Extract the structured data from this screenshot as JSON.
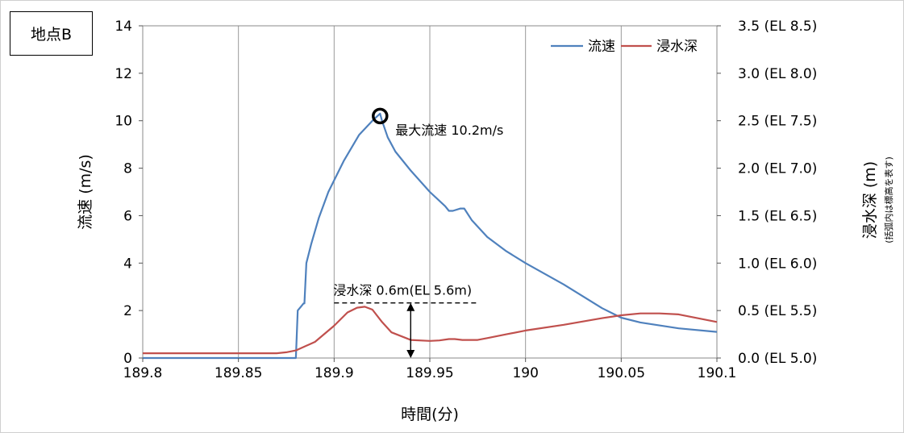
{
  "location_label": "地点B",
  "chart_data": {
    "type": "line",
    "xlabel": "時間(分)",
    "ylabel_left": "流速 (m/s)",
    "ylabel_right": "浸水深 (m)",
    "ylabel_right_note": "(括弧内は標高を表す)",
    "xlim": [
      189.8,
      190.1
    ],
    "x_ticks": [
      "189.8",
      "189.85",
      "189.9",
      "189.95",
      "190",
      "190.05",
      "190.1"
    ],
    "x_tick_values": [
      189.8,
      189.85,
      189.9,
      189.95,
      190.0,
      190.05,
      190.1
    ],
    "ylim_left": [
      0,
      14
    ],
    "y_ticks_left": [
      "0",
      "2",
      "4",
      "6",
      "8",
      "10",
      "12",
      "14"
    ],
    "y_tick_values_left": [
      0,
      2,
      4,
      6,
      8,
      10,
      12,
      14
    ],
    "ylim_right": [
      0,
      3.5
    ],
    "y_ticks_right": [
      "0.0 (EL 5.0)",
      "0.5 (EL 5.5)",
      "1.0 (EL 6.0)",
      "1.5 (EL 6.5)",
      "2.0 (EL 7.0)",
      "2.5 (EL 7.5)",
      "3.0 (EL 8.0)",
      "3.5 (EL 8.5)"
    ],
    "y_tick_values_right": [
      0,
      0.5,
      1.0,
      1.5,
      2.0,
      2.5,
      3.0,
      3.5
    ],
    "grid": {
      "vertical": true,
      "horizontal": false
    },
    "legend_position": "top-right",
    "series": [
      {
        "name": "流速",
        "axis": "left",
        "color": "#4f81bd",
        "x": [
          189.8,
          189.88,
          189.881,
          189.883,
          189.884,
          189.8845,
          189.8855,
          189.888,
          189.892,
          189.897,
          189.905,
          189.913,
          189.92,
          189.924,
          189.925,
          189.928,
          189.932,
          189.94,
          189.95,
          189.958,
          189.96,
          189.962,
          189.966,
          189.968,
          189.972,
          189.98,
          189.99,
          190.0,
          190.02,
          190.04,
          190.05,
          190.06,
          190.08,
          190.1
        ],
        "y": [
          0.0,
          0.0,
          2.0,
          2.2,
          2.3,
          2.3,
          4.0,
          4.8,
          5.9,
          7.0,
          8.3,
          9.4,
          10.0,
          10.3,
          10.0,
          9.3,
          8.7,
          7.9,
          7.0,
          6.4,
          6.2,
          6.2,
          6.3,
          6.3,
          5.8,
          5.1,
          4.5,
          4.0,
          3.1,
          2.1,
          1.7,
          1.5,
          1.25,
          1.1
        ]
      },
      {
        "name": "浸水深",
        "axis": "right",
        "color": "#c0504d",
        "x": [
          189.8,
          189.87,
          189.875,
          189.88,
          189.89,
          189.9,
          189.907,
          189.912,
          189.916,
          189.92,
          189.925,
          189.93,
          189.94,
          189.95,
          189.955,
          189.96,
          189.963,
          189.967,
          189.975,
          189.98,
          189.99,
          190.0,
          190.02,
          190.04,
          190.05,
          190.06,
          190.07,
          190.08,
          190.1
        ],
        "y": [
          0.05,
          0.05,
          0.06,
          0.08,
          0.17,
          0.34,
          0.48,
          0.53,
          0.54,
          0.51,
          0.38,
          0.27,
          0.19,
          0.18,
          0.185,
          0.2,
          0.2,
          0.19,
          0.19,
          0.21,
          0.25,
          0.29,
          0.35,
          0.42,
          0.45,
          0.47,
          0.47,
          0.46,
          0.38
        ]
      }
    ],
    "annotations": {
      "max_velocity_label": "最大流速 10.2m/s",
      "max_velocity_point": {
        "x": 189.924,
        "y": 10.2
      },
      "depth_label": "浸水深 0.6m(EL 5.6m)",
      "depth_line": {
        "x_start": 189.9,
        "x_end": 189.975,
        "y_right": 0.58
      },
      "depth_arrow": {
        "x": 189.94,
        "y_right_top": 0.58,
        "y_right_bottom": 0.0
      }
    }
  }
}
